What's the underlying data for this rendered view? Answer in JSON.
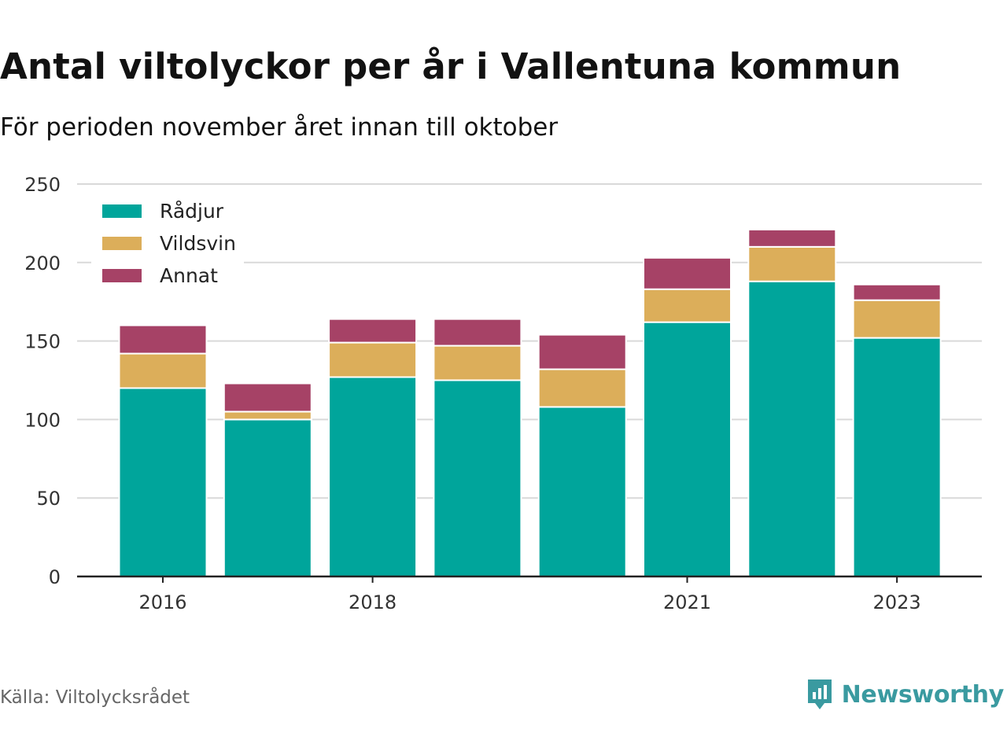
{
  "title": "Antal viltolyckor per år i Vallentuna kommun",
  "subtitle": "För perioden november året innan till oktober",
  "source": "Källa: Viltolycksrådet",
  "brand": "Newsworthy",
  "colors": {
    "Rådjur": "#00a59b",
    "Vildsvin": "#dcae5a",
    "Annat": "#a64266",
    "brand": "#3a9aa0"
  },
  "chart_data": {
    "type": "bar",
    "stacked": true,
    "categories": [
      "2016",
      "2017",
      "2018",
      "2019",
      "2020",
      "2021",
      "2022",
      "2023"
    ],
    "x_tick_labels": [
      "2016",
      "",
      "2018",
      "",
      "",
      "2021",
      "",
      "2023"
    ],
    "series": [
      {
        "name": "Rådjur",
        "values": [
          120,
          100,
          127,
          125,
          108,
          162,
          188,
          152
        ]
      },
      {
        "name": "Vildsvin",
        "values": [
          22,
          5,
          22,
          22,
          24,
          21,
          22,
          24
        ]
      },
      {
        "name": "Annat",
        "values": [
          18,
          18,
          15,
          17,
          22,
          20,
          11,
          10
        ]
      }
    ],
    "ylim": [
      0,
      250
    ],
    "yticks": [
      0,
      50,
      100,
      150,
      200,
      250
    ],
    "grid": true,
    "legend_position": "top-left"
  }
}
